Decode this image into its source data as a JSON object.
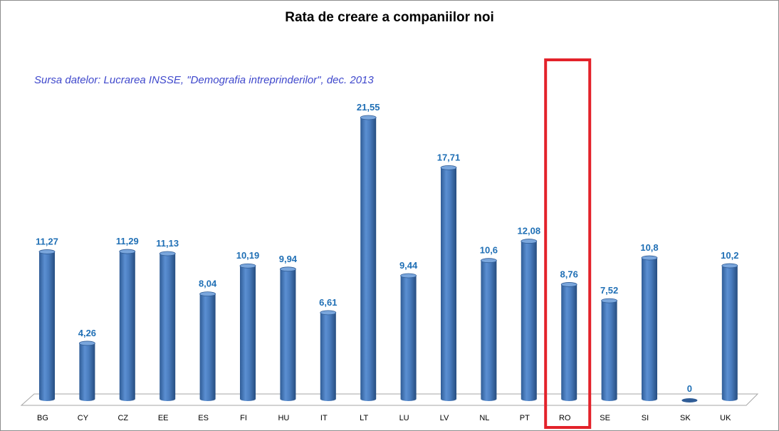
{
  "chart_data": {
    "type": "bar",
    "title": "Rata de creare a companiilor noi",
    "subtitle": "Sursa datelor: Lucrarea INSSE, \"Demografia intreprinderilor\", dec. 2013",
    "categories": [
      "BG",
      "CY",
      "CZ",
      "EE",
      "ES",
      "FI",
      "HU",
      "IT",
      "LT",
      "LU",
      "LV",
      "NL",
      "PT",
      "RO",
      "SE",
      "SI",
      "SK",
      "UK"
    ],
    "values": [
      11.27,
      4.26,
      11.29,
      11.13,
      8.04,
      10.19,
      9.94,
      6.61,
      21.55,
      9.44,
      17.71,
      10.6,
      12.08,
      8.76,
      7.52,
      10.8,
      0,
      10.2
    ],
    "data_labels": [
      "11,27",
      "4,26",
      "11,29",
      "11,13",
      "8,04",
      "10,19",
      "9,94",
      "6,61",
      "21,55",
      "9,44",
      "17,71",
      "10,6",
      "12,08",
      "8,76",
      "7,52",
      "10,8",
      "0",
      "10,2"
    ],
    "highlight": "RO",
    "xlabel": "",
    "ylabel": "",
    "ylim": [
      0,
      21.55
    ],
    "grid": false,
    "colors": {
      "bar": "#4f81bd",
      "label": "#1f6fb5",
      "highlight": "#e3222a",
      "source": "#3f48cc"
    }
  }
}
